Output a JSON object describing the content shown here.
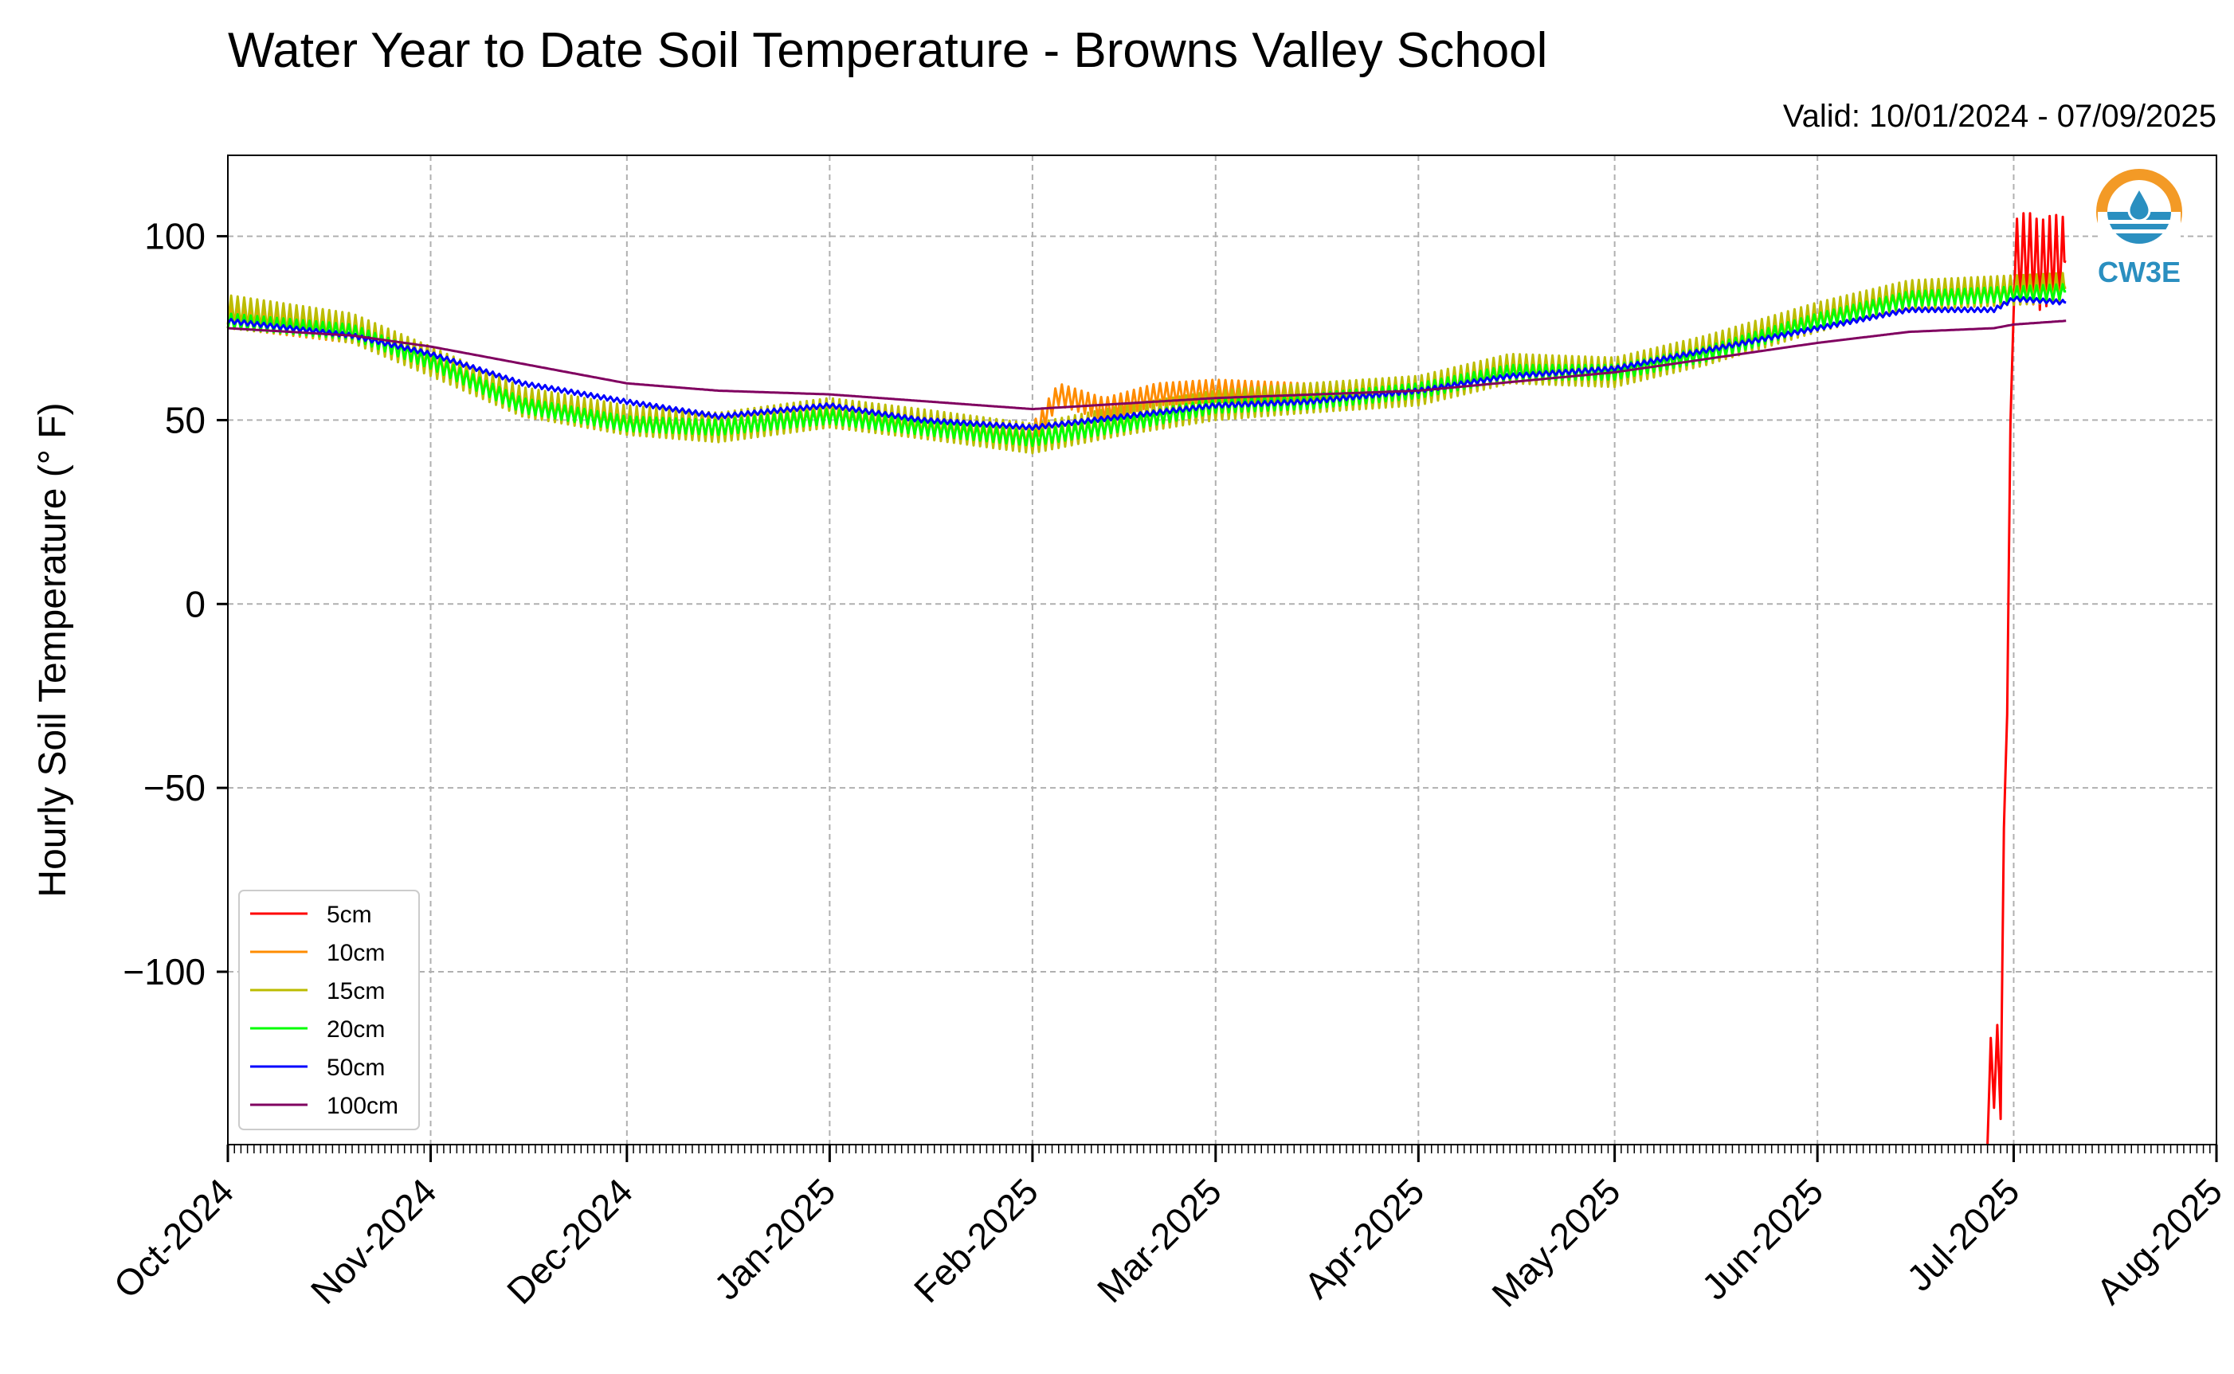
{
  "chart_data": {
    "type": "line",
    "title": "Water Year to Date Soil Temperature - Browns Valley School",
    "subtitle": "Valid: 10/01/2024 - 07/09/2025",
    "xlabel": "",
    "ylabel": "Hourly Soil Temperature (° F)",
    "x_ticks": [
      "Oct-2024",
      "Nov-2024",
      "Dec-2024",
      "Jan-2025",
      "Feb-2025",
      "Mar-2025",
      "Apr-2025",
      "May-2025",
      "Jun-2025",
      "Jul-2025",
      "Aug-2025"
    ],
    "y_ticks": [
      "100",
      "50",
      "0",
      "−50",
      "−100"
    ],
    "x_range": [
      "2024-10-01",
      "2025-08-01"
    ],
    "ylim": [
      -147,
      122
    ],
    "grid": true,
    "legend_position": "lower-left",
    "logo_text": "CW3E",
    "series": [
      {
        "name": "5cm",
        "color": "#ff0000",
        "diurnal_amplitude": 12,
        "points": [
          [
            "2025-06-27",
            -135
          ],
          [
            "2025-06-28",
            -125
          ],
          [
            "2025-06-29",
            -128
          ],
          [
            "2025-07-01",
            92
          ],
          [
            "2025-07-03",
            95
          ],
          [
            "2025-07-05",
            92
          ],
          [
            "2025-07-07",
            94
          ],
          [
            "2025-07-09",
            93
          ]
        ]
      },
      {
        "name": "10cm",
        "color": "#ff8c00",
        "diurnal_amplitude": 3,
        "points": [
          [
            "2024-10-01",
            78
          ],
          [
            "2024-10-20",
            74
          ],
          [
            "2024-11-01",
            67
          ],
          [
            "2024-11-15",
            55
          ],
          [
            "2024-12-01",
            50
          ],
          [
            "2024-12-15",
            48
          ],
          [
            "2025-01-01",
            52
          ],
          [
            "2025-01-15",
            49
          ],
          [
            "2025-02-01",
            46
          ],
          [
            "2025-02-05",
            57
          ],
          [
            "2025-02-12",
            53
          ],
          [
            "2025-02-20",
            57
          ],
          [
            "2025-03-01",
            58
          ],
          [
            "2025-03-15",
            57
          ],
          [
            "2025-04-01",
            58
          ],
          [
            "2025-04-15",
            64
          ],
          [
            "2025-05-01",
            63
          ],
          [
            "2025-05-15",
            69
          ],
          [
            "2025-06-01",
            78
          ],
          [
            "2025-06-15",
            84
          ],
          [
            "2025-06-27",
            85
          ],
          [
            "2025-07-09",
            86
          ]
        ]
      },
      {
        "name": "15cm",
        "color": "#bcbc00",
        "diurnal_amplitude": 4,
        "points": [
          [
            "2024-10-01",
            80
          ],
          [
            "2024-10-20",
            75
          ],
          [
            "2024-11-01",
            66
          ],
          [
            "2024-11-15",
            55
          ],
          [
            "2024-12-01",
            50
          ],
          [
            "2024-12-15",
            48
          ],
          [
            "2025-01-01",
            52
          ],
          [
            "2025-01-15",
            49
          ],
          [
            "2025-02-01",
            45
          ],
          [
            "2025-02-15",
            50
          ],
          [
            "2025-03-01",
            54
          ],
          [
            "2025-03-15",
            56
          ],
          [
            "2025-04-01",
            58
          ],
          [
            "2025-04-15",
            64
          ],
          [
            "2025-05-01",
            63
          ],
          [
            "2025-05-15",
            69
          ],
          [
            "2025-06-01",
            78
          ],
          [
            "2025-06-15",
            84
          ],
          [
            "2025-06-27",
            85
          ],
          [
            "2025-07-09",
            86
          ]
        ]
      },
      {
        "name": "20cm",
        "color": "#00ff00",
        "diurnal_amplitude": 2,
        "points": [
          [
            "2024-10-01",
            77
          ],
          [
            "2024-10-20",
            74
          ],
          [
            "2024-11-01",
            66
          ],
          [
            "2024-11-15",
            54
          ],
          [
            "2024-12-01",
            49
          ],
          [
            "2024-12-15",
            48
          ],
          [
            "2025-01-01",
            51
          ],
          [
            "2025-01-15",
            48
          ],
          [
            "2025-02-01",
            45
          ],
          [
            "2025-02-15",
            49
          ],
          [
            "2025-03-01",
            54
          ],
          [
            "2025-03-15",
            55
          ],
          [
            "2025-04-01",
            58
          ],
          [
            "2025-04-15",
            63
          ],
          [
            "2025-05-01",
            63
          ],
          [
            "2025-05-15",
            68
          ],
          [
            "2025-06-01",
            77
          ],
          [
            "2025-06-15",
            83
          ],
          [
            "2025-06-27",
            84
          ],
          [
            "2025-07-09",
            85
          ]
        ]
      },
      {
        "name": "50cm",
        "color": "#0000ff",
        "diurnal_amplitude": 0.6,
        "points": [
          [
            "2024-10-01",
            77
          ],
          [
            "2024-10-20",
            73
          ],
          [
            "2024-11-01",
            68
          ],
          [
            "2024-11-15",
            60
          ],
          [
            "2024-12-01",
            55
          ],
          [
            "2024-12-15",
            51
          ],
          [
            "2025-01-01",
            54
          ],
          [
            "2025-01-15",
            50
          ],
          [
            "2025-02-01",
            48
          ],
          [
            "2025-02-15",
            51
          ],
          [
            "2025-03-01",
            54
          ],
          [
            "2025-03-15",
            55
          ],
          [
            "2025-04-01",
            58
          ],
          [
            "2025-04-15",
            62
          ],
          [
            "2025-05-01",
            64
          ],
          [
            "2025-05-15",
            69
          ],
          [
            "2025-06-01",
            75
          ],
          [
            "2025-06-15",
            80
          ],
          [
            "2025-06-28",
            80
          ],
          [
            "2025-07-01",
            83
          ],
          [
            "2025-07-09",
            82
          ]
        ]
      },
      {
        "name": "100cm",
        "color": "#800060",
        "diurnal_amplitude": 0,
        "points": [
          [
            "2024-10-01",
            75
          ],
          [
            "2024-10-20",
            73
          ],
          [
            "2024-11-01",
            70
          ],
          [
            "2024-12-01",
            60
          ],
          [
            "2024-12-15",
            58
          ],
          [
            "2025-01-01",
            57
          ],
          [
            "2025-02-01",
            53
          ],
          [
            "2025-03-01",
            56
          ],
          [
            "2025-04-01",
            58
          ],
          [
            "2025-05-01",
            63
          ],
          [
            "2025-06-01",
            71
          ],
          [
            "2025-06-15",
            74
          ],
          [
            "2025-06-28",
            75
          ],
          [
            "2025-07-01",
            76
          ],
          [
            "2025-07-09",
            77
          ]
        ]
      }
    ]
  }
}
